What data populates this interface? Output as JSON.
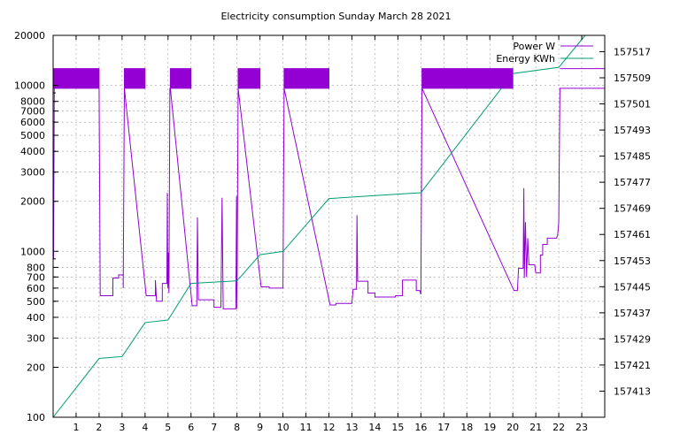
{
  "chart_data": {
    "type": "line",
    "title": "Electricity consumption Sunday March 28 2021",
    "xlabel": "",
    "ylabel": "",
    "y2label": "",
    "x_range": [
      0,
      24
    ],
    "x_ticks": [
      1,
      2,
      3,
      4,
      5,
      6,
      7,
      8,
      9,
      10,
      11,
      12,
      13,
      14,
      15,
      16,
      17,
      18,
      19,
      20,
      21,
      22,
      23
    ],
    "y_scale": "log",
    "y_range": [
      100,
      20000
    ],
    "y_ticks": [
      100,
      200,
      300,
      400,
      500,
      600,
      700,
      800,
      1000,
      2000,
      3000,
      4000,
      5000,
      6000,
      7000,
      8000,
      10000,
      20000
    ],
    "y2_range": [
      157405,
      157522
    ],
    "y2_ticks": [
      157413,
      157421,
      157429,
      157437,
      157445,
      157453,
      157461,
      157469,
      157477,
      157485,
      157493,
      157501,
      157509,
      157517
    ],
    "grid": true,
    "legend_position": "top-right",
    "series": [
      {
        "name": "Power W",
        "axis": "y",
        "color": "#9400d3",
        "points": [
          [
            0.0,
            9600
          ],
          [
            0.0,
            12600
          ],
          [
            2.0,
            12600
          ],
          [
            2.0,
            9600
          ],
          [
            0.0,
            9600
          ],
          [
            0.0,
            2900
          ],
          [
            0.02,
            900
          ],
          [
            0.05,
            9600
          ],
          [
            2.0,
            9600
          ],
          [
            2.05,
            540
          ],
          [
            2.6,
            540
          ],
          [
            2.6,
            690
          ],
          [
            2.85,
            690
          ],
          [
            2.85,
            720
          ],
          [
            3.05,
            720
          ],
          [
            3.05,
            600
          ],
          [
            3.1,
            9600
          ],
          [
            4.0,
            9600
          ],
          [
            4.0,
            12600
          ],
          [
            3.1,
            12600
          ],
          [
            3.1,
            9600
          ],
          [
            4.05,
            540
          ],
          [
            4.45,
            540
          ],
          [
            4.45,
            670
          ],
          [
            4.5,
            500
          ],
          [
            4.75,
            500
          ],
          [
            4.75,
            640
          ],
          [
            4.95,
            640
          ],
          [
            4.97,
            2250
          ],
          [
            4.99,
            600
          ],
          [
            5.02,
            980
          ],
          [
            5.04,
            560
          ],
          [
            5.08,
            9600
          ],
          [
            5.1,
            9600
          ],
          [
            5.1,
            12600
          ],
          [
            6.0,
            12600
          ],
          [
            6.0,
            9600
          ],
          [
            5.1,
            9600
          ],
          [
            6.05,
            470
          ],
          [
            6.25,
            470
          ],
          [
            6.28,
            1600
          ],
          [
            6.32,
            510
          ],
          [
            7.0,
            510
          ],
          [
            7.0,
            460
          ],
          [
            7.3,
            460
          ],
          [
            7.35,
            2100
          ],
          [
            7.4,
            450
          ],
          [
            7.95,
            450
          ],
          [
            7.98,
            2150
          ],
          [
            8.0,
            450
          ],
          [
            8.05,
            9600
          ],
          [
            9.0,
            9600
          ],
          [
            9.0,
            12600
          ],
          [
            8.05,
            12600
          ],
          [
            8.05,
            9600
          ],
          [
            9.05,
            610
          ],
          [
            9.4,
            610
          ],
          [
            9.4,
            600
          ],
          [
            10.0,
            600
          ],
          [
            10.05,
            9600
          ],
          [
            10.05,
            12600
          ],
          [
            12.0,
            12600
          ],
          [
            12.0,
            9600
          ],
          [
            10.05,
            9600
          ],
          [
            12.05,
            475
          ],
          [
            12.3,
            475
          ],
          [
            12.3,
            485
          ],
          [
            13.0,
            485
          ],
          [
            13.05,
            590
          ],
          [
            13.2,
            590
          ],
          [
            13.22,
            1650
          ],
          [
            13.25,
            660
          ],
          [
            13.7,
            660
          ],
          [
            13.7,
            560
          ],
          [
            14.0,
            560
          ],
          [
            14.0,
            530
          ],
          [
            14.9,
            530
          ],
          [
            14.9,
            540
          ],
          [
            15.2,
            540
          ],
          [
            15.2,
            670
          ],
          [
            15.8,
            670
          ],
          [
            15.8,
            580
          ],
          [
            15.95,
            580
          ],
          [
            16.0,
            550
          ],
          [
            16.05,
            9600
          ],
          [
            20.0,
            9600
          ],
          [
            20.0,
            12600
          ],
          [
            16.05,
            12600
          ],
          [
            16.05,
            9600
          ],
          [
            20.05,
            580
          ],
          [
            20.2,
            580
          ],
          [
            20.25,
            790
          ],
          [
            20.45,
            790
          ],
          [
            20.48,
            2400
          ],
          [
            20.5,
            690
          ],
          [
            20.55,
            1500
          ],
          [
            20.6,
            700
          ],
          [
            20.65,
            1200
          ],
          [
            20.7,
            830
          ],
          [
            20.95,
            830
          ],
          [
            21.0,
            740
          ],
          [
            21.2,
            740
          ],
          [
            21.2,
            950
          ],
          [
            21.3,
            950
          ],
          [
            21.3,
            1100
          ],
          [
            21.5,
            1100
          ],
          [
            21.5,
            1200
          ],
          [
            21.9,
            1200
          ],
          [
            21.95,
            1250
          ],
          [
            22.0,
            1500
          ],
          [
            22.05,
            9600
          ],
          [
            24.0,
            9600
          ],
          [
            24.0,
            12600
          ],
          [
            22.05,
            12600
          ]
        ]
      },
      {
        "name": "Energy KWh",
        "axis": "y2",
        "color": "#009e73",
        "points": [
          [
            0.0,
            157405
          ],
          [
            2.0,
            157423
          ],
          [
            3.0,
            157423.6
          ],
          [
            4.0,
            157434
          ],
          [
            5.0,
            157434.8
          ],
          [
            6.0,
            157446
          ],
          [
            8.0,
            157446.8
          ],
          [
            9.0,
            157454.8
          ],
          [
            10.0,
            157455.8
          ],
          [
            12.0,
            157472
          ],
          [
            14.0,
            157472.9
          ],
          [
            16.0,
            157473.8
          ],
          [
            20.0,
            157510.3
          ],
          [
            22.0,
            157512.2
          ],
          [
            23.15,
            157522
          ]
        ]
      }
    ]
  }
}
